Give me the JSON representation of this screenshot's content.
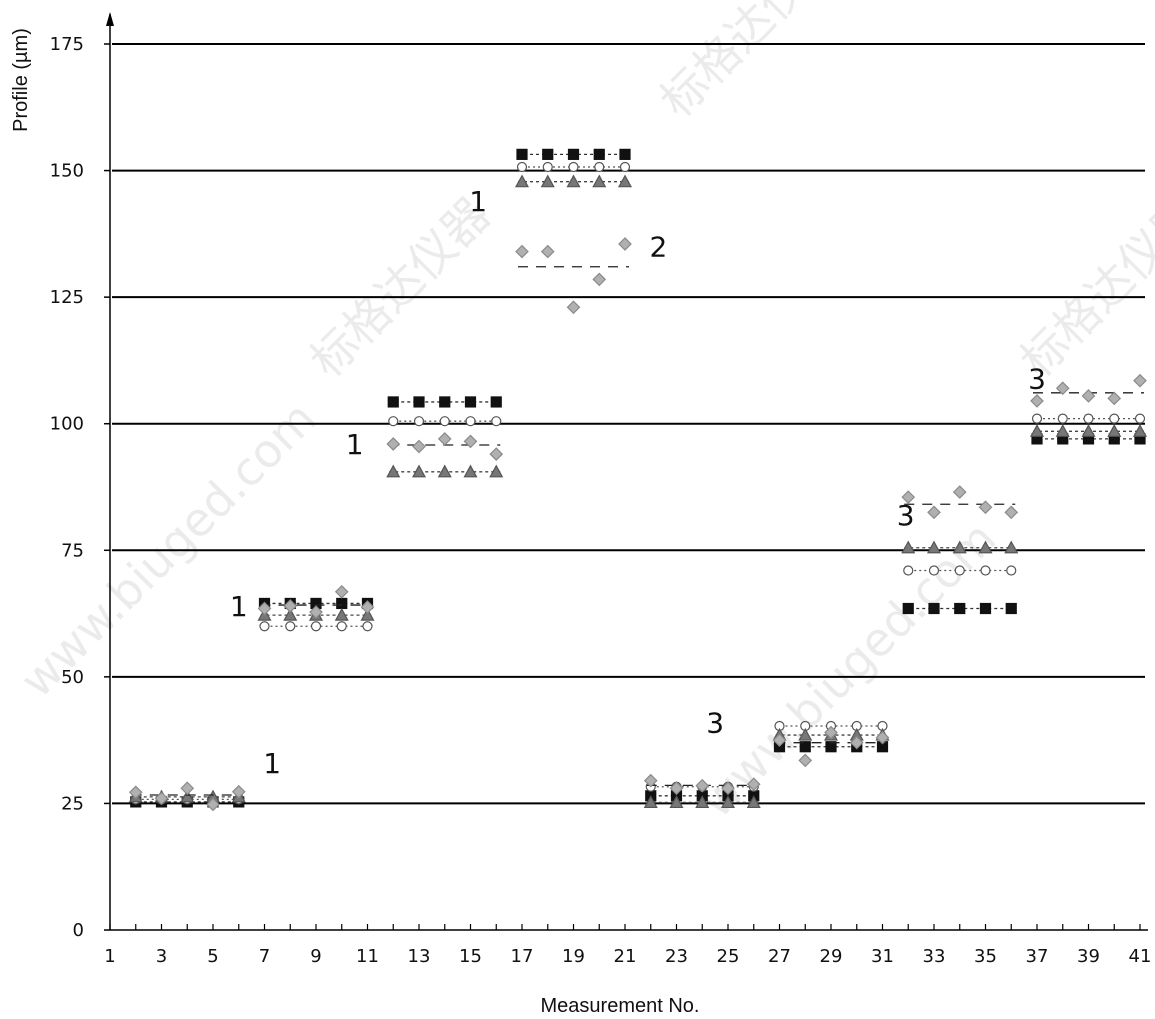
{
  "chart_data": {
    "type": "scatter",
    "title": "",
    "xlabel": "Measurement No.",
    "ylabel": "Profile (µm)",
    "xlim": [
      1,
      41
    ],
    "ylim": [
      0,
      175
    ],
    "x_ticks": [
      1,
      3,
      5,
      7,
      9,
      11,
      13,
      15,
      17,
      19,
      21,
      23,
      25,
      27,
      29,
      31,
      33,
      35,
      37,
      39,
      41
    ],
    "y_ticks": [
      0,
      25,
      50,
      75,
      100,
      125,
      150,
      175
    ],
    "grid": "horizontal",
    "legend": "none",
    "group_labels": [
      {
        "text": "1",
        "x": 6.0,
        "y": 62
      },
      {
        "text": "1",
        "x": 7.3,
        "y": 31
      },
      {
        "text": "1",
        "x": 10.5,
        "y": 94
      },
      {
        "text": "1",
        "x": 15.3,
        "y": 142
      },
      {
        "text": "2",
        "x": 22.3,
        "y": 133
      },
      {
        "text": "3",
        "x": 24.5,
        "y": 39
      },
      {
        "text": "3",
        "x": 31.9,
        "y": 80
      },
      {
        "text": "3",
        "x": 37.0,
        "y": 107
      }
    ],
    "groups": [
      {
        "x": [
          2,
          3,
          4,
          5,
          6
        ],
        "series": [
          {
            "marker": "square",
            "values": [
              25.3,
              25.3,
              25.3,
              25.3,
              25.3
            ]
          },
          {
            "marker": "circle",
            "values": [
              25.8,
              25.8,
              25.8,
              25.8,
              25.8
            ]
          },
          {
            "marker": "triangle",
            "values": [
              26.3,
              26.3,
              26.3,
              26.3,
              26.3
            ]
          },
          {
            "marker": "diamond",
            "values": [
              27.2,
              26.0,
              28.0,
              24.8,
              27.3
            ]
          }
        ]
      },
      {
        "x": [
          7,
          8,
          9,
          10,
          11
        ],
        "series": [
          {
            "marker": "square",
            "values": [
              64.5,
              64.5,
              64.5,
              64.5,
              64.5
            ]
          },
          {
            "marker": "circle",
            "values": [
              60.0,
              60.0,
              60.0,
              60.0,
              60.0
            ]
          },
          {
            "marker": "triangle",
            "values": [
              62.2,
              62.2,
              62.2,
              62.2,
              62.2
            ]
          },
          {
            "marker": "diamond",
            "values": [
              63.5,
              64.0,
              62.8,
              66.8,
              63.8
            ]
          }
        ]
      },
      {
        "x": [
          12,
          13,
          14,
          15,
          16
        ],
        "series": [
          {
            "marker": "square",
            "values": [
              104.3,
              104.3,
              104.3,
              104.3,
              104.3
            ]
          },
          {
            "marker": "circle",
            "values": [
              100.5,
              100.5,
              100.5,
              100.5,
              100.5
            ]
          },
          {
            "marker": "triangle",
            "values": [
              90.5,
              90.5,
              90.5,
              90.5,
              90.5
            ]
          },
          {
            "marker": "diamond",
            "values": [
              96.0,
              95.5,
              97.0,
              96.5,
              94.0
            ]
          }
        ]
      },
      {
        "x": [
          17,
          18,
          19,
          20,
          21
        ],
        "series": [
          {
            "marker": "square",
            "values": [
              153.2,
              153.2,
              153.2,
              153.2,
              153.2
            ]
          },
          {
            "marker": "circle",
            "values": [
              150.7,
              150.7,
              150.7,
              150.7,
              150.7
            ]
          },
          {
            "marker": "triangle",
            "values": [
              147.8,
              147.8,
              147.8,
              147.8,
              147.8
            ]
          },
          {
            "marker": "diamond",
            "values": [
              134.0,
              134.0,
              123.0,
              128.5,
              135.5
            ]
          }
        ]
      },
      {
        "x": [
          22,
          23,
          24,
          25,
          26
        ],
        "series": [
          {
            "marker": "square",
            "values": [
              26.5,
              26.5,
              26.5,
              26.5,
              26.5
            ]
          },
          {
            "marker": "circle",
            "values": [
              28.3,
              28.3,
              28.3,
              28.3,
              28.3
            ]
          },
          {
            "marker": "triangle",
            "values": [
              25.2,
              25.2,
              25.2,
              25.2,
              25.2
            ]
          },
          {
            "marker": "diamond",
            "values": [
              29.5,
              28.0,
              28.5,
              28.0,
              28.8
            ]
          }
        ]
      },
      {
        "x": [
          27,
          28,
          29,
          30,
          31
        ],
        "series": [
          {
            "marker": "square",
            "values": [
              36.2,
              36.2,
              36.2,
              36.2,
              36.2
            ]
          },
          {
            "marker": "circle",
            "values": [
              40.3,
              40.3,
              40.3,
              40.3,
              40.3
            ]
          },
          {
            "marker": "triangle",
            "values": [
              38.5,
              38.5,
              38.5,
              38.5,
              38.5
            ]
          },
          {
            "marker": "diamond",
            "values": [
              37.5,
              33.5,
              39.0,
              37.0,
              38.0
            ]
          }
        ]
      },
      {
        "x": [
          32,
          33,
          34,
          35,
          36
        ],
        "series": [
          {
            "marker": "square",
            "values": [
              63.5,
              63.5,
              63.5,
              63.5,
              63.5
            ]
          },
          {
            "marker": "circle",
            "values": [
              71.0,
              71.0,
              71.0,
              71.0,
              71.0
            ]
          },
          {
            "marker": "triangle",
            "values": [
              75.5,
              75.5,
              75.5,
              75.5,
              75.5
            ]
          },
          {
            "marker": "diamond",
            "values": [
              85.5,
              82.5,
              86.5,
              83.5,
              82.5
            ]
          }
        ]
      },
      {
        "x": [
          37,
          38,
          39,
          40,
          41
        ],
        "series": [
          {
            "marker": "square",
            "values": [
              97.0,
              97.0,
              97.0,
              97.0,
              97.0
            ]
          },
          {
            "marker": "circle",
            "values": [
              101.0,
              101.0,
              101.0,
              101.0,
              101.0
            ]
          },
          {
            "marker": "triangle",
            "values": [
              98.5,
              98.5,
              98.5,
              98.5,
              98.5
            ]
          },
          {
            "marker": "diamond",
            "values": [
              104.5,
              107.0,
              105.5,
              105.0,
              108.5
            ]
          }
        ]
      }
    ]
  },
  "watermark": {
    "texts": [
      "标格达仪器",
      "www.biuged.com"
    ]
  }
}
